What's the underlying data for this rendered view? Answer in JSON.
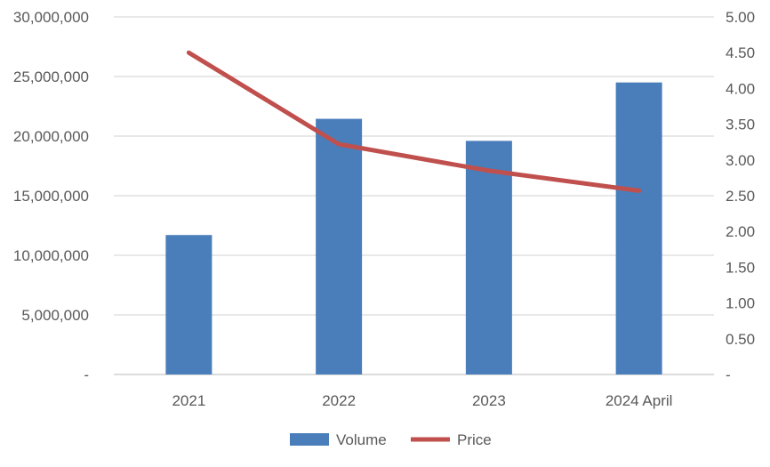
{
  "chart_data": {
    "type": "bar",
    "categories": [
      "2021",
      "2022",
      "2023",
      "2024 April"
    ],
    "series": [
      {
        "name": "Volume",
        "type": "bar",
        "axis": "left",
        "color": "#4a7ebb",
        "values": [
          11700000,
          21450000,
          19600000,
          24500000
        ]
      },
      {
        "name": "Price",
        "type": "line",
        "axis": "right",
        "color": "#c0504d",
        "values": [
          4.5,
          3.22,
          2.85,
          2.57
        ]
      }
    ],
    "y_left": {
      "ylim": [
        0,
        30000000
      ],
      "ticks": [
        0,
        5000000,
        10000000,
        15000000,
        20000000,
        25000000,
        30000000
      ],
      "tick_labels": [
        "-",
        "5,000,000",
        "10,000,000",
        "15,000,000",
        "20,000,000",
        "25,000,000",
        "30,000,000"
      ]
    },
    "y_right": {
      "ylim": [
        0,
        5
      ],
      "ticks": [
        0,
        0.5,
        1,
        1.5,
        2,
        2.5,
        3,
        3.5,
        4,
        4.5,
        5
      ],
      "tick_labels": [
        "-",
        "0.50",
        "1.00",
        "1.50",
        "2.00",
        "2.50",
        "3.00",
        "3.50",
        "4.00",
        "4.50",
        "5.00"
      ]
    },
    "grid": true,
    "legend": {
      "position": "bottom",
      "entries": [
        "Volume",
        "Price"
      ]
    }
  }
}
